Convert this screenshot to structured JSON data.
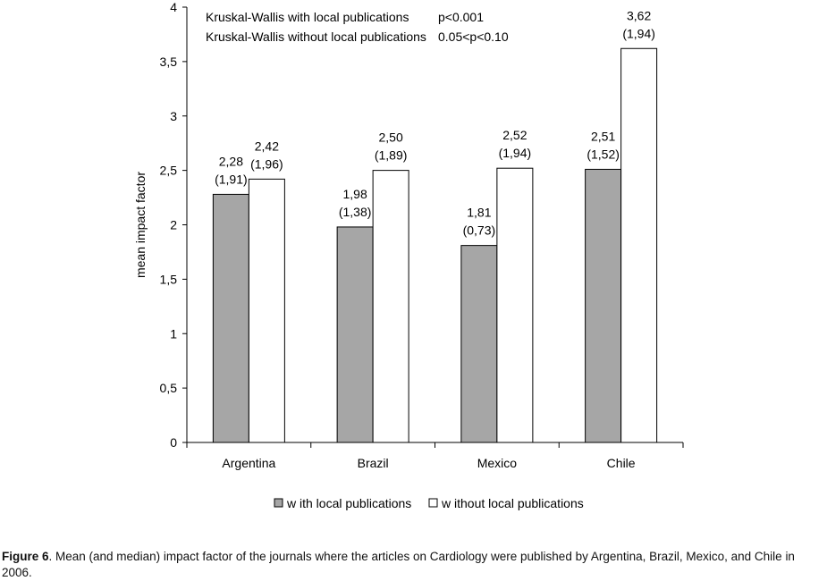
{
  "chart_data": {
    "type": "bar",
    "categories": [
      "Argentina",
      "Brazil",
      "Mexico",
      "Chile"
    ],
    "series": [
      {
        "name": "w ith local publications",
        "color": "#a6a6a6",
        "values": [
          2.28,
          1.98,
          1.81,
          2.51
        ],
        "value_labels": [
          "2,28",
          "1,98",
          "1,81",
          "2,51"
        ],
        "median_labels": [
          "(1,91)",
          "(1,38)",
          "(0,73)",
          "(1,52)"
        ]
      },
      {
        "name": "w ithout local publications",
        "color": "#ffffff",
        "values": [
          2.42,
          2.5,
          2.52,
          3.62
        ],
        "value_labels": [
          "2,42",
          "2,50",
          "2,52",
          "3,62"
        ],
        "median_labels": [
          "(1,96)",
          "(1,89)",
          "(1,94)",
          "(1,94)"
        ]
      }
    ],
    "ylabel": "mean impact factor",
    "xlabel": "",
    "ylim": [
      0,
      4
    ],
    "yticks": [
      0,
      0.5,
      1,
      1.5,
      2,
      2.5,
      3,
      3.5,
      4
    ],
    "ytick_labels": [
      "0",
      "0,5",
      "1",
      "1,5",
      "2",
      "2,5",
      "3",
      "3,5",
      "4"
    ],
    "annotations": [
      {
        "label": "Kruskal-Wallis with local publications",
        "value": "p<0.001"
      },
      {
        "label": "Kruskal-Wallis without local publications",
        "value": "0.05<p<0.10"
      }
    ],
    "legend_position": "bottom"
  },
  "caption": {
    "label": "Figure 6",
    "text": ". Mean (and median) impact factor of the journals where the articles on Cardiology were published by Argentina, Brazil, Mexico, and Chile in 2006."
  }
}
